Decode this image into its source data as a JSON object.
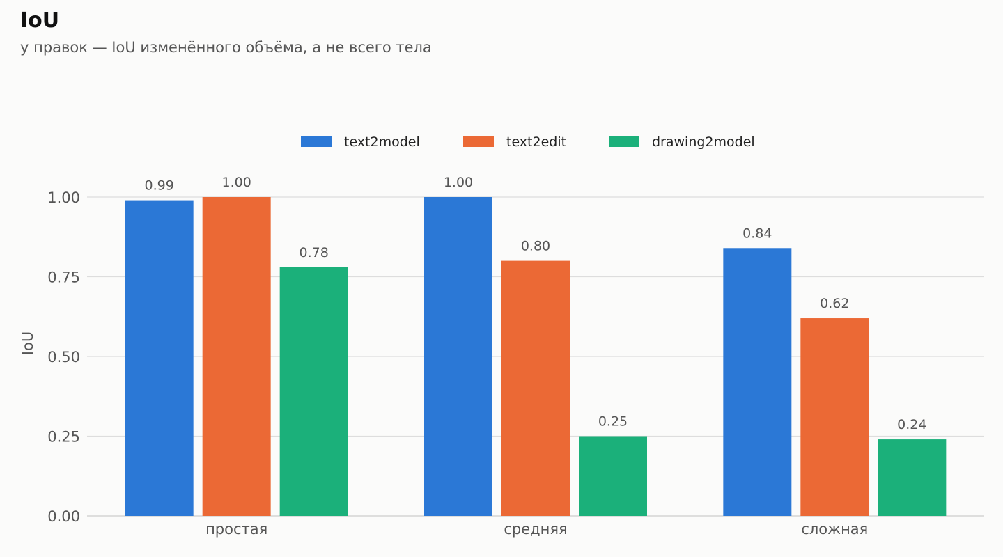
{
  "chart_data": {
    "type": "bar",
    "title": "IoU",
    "subtitle": "у правок — IoU изменённого объёма, а не всего тела",
    "xlabel": "",
    "ylabel": "IoU",
    "categories": [
      "простая",
      "средняя",
      "сложная"
    ],
    "series": [
      {
        "name": "text2model",
        "color": "#2b78d6",
        "values": [
          0.99,
          1.0,
          0.84
        ]
      },
      {
        "name": "text2edit",
        "color": "#eb6935",
        "values": [
          1.0,
          0.8,
          0.62
        ]
      },
      {
        "name": "drawing2model",
        "color": "#1bb07a",
        "values": [
          0.78,
          0.25,
          0.24
        ]
      }
    ],
    "ylim": [
      0,
      1.0
    ],
    "yticks": [
      "0.00",
      "0.25",
      "0.50",
      "0.75",
      "1.00"
    ],
    "grid": true,
    "legend_position": "top-center"
  }
}
